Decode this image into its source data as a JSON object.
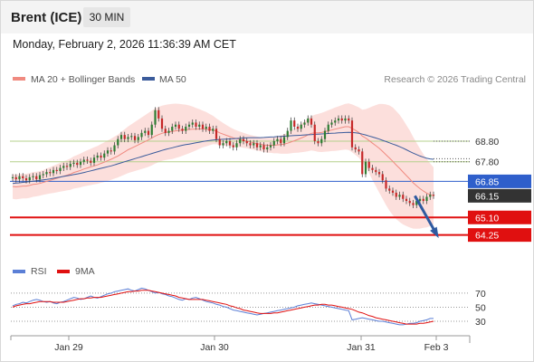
{
  "header": {
    "instrument": "Brent (ICE)",
    "timeframe": "30 MIN"
  },
  "timestamp": "Monday, February 2, 2026 11:36:39 AM CET",
  "copyright": "Research © 2026 Trading Central",
  "colors": {
    "bollinger_fill": "#fbd9d6",
    "ma20": "#f08a80",
    "ma50": "#3b5b9b",
    "bull": "#2e7d32",
    "bear": "#c62828",
    "resistance": "#b5d08c",
    "pivot": "#2f5fcb",
    "support": "#e01010",
    "arrow": "#2f5aa0",
    "last_price_tag": "#333333",
    "rsi": "#5b7fd6",
    "rsi_ma": "#e01010"
  },
  "chart_data": [
    {
      "type": "line",
      "name": "price",
      "legend": [
        "MA 20 + Bollinger Bands",
        "MA 50"
      ],
      "x_ticks": [
        "Jan 29",
        "Jan 30",
        "Jan 31",
        "Feb 3"
      ],
      "ylim": [
        63.4,
        71.3
      ],
      "grid": false,
      "legend_placement": "top-left",
      "levels": [
        {
          "value": 68.8,
          "label": "68.80",
          "role": "resistance"
        },
        {
          "value": 67.8,
          "label": "67.80",
          "role": "resistance"
        },
        {
          "value": 66.85,
          "label": "66.85",
          "role": "pivot"
        },
        {
          "value": 66.15,
          "label": "66.15",
          "role": "last"
        },
        {
          "value": 65.1,
          "label": "65.10",
          "role": "support"
        },
        {
          "value": 64.25,
          "label": "64.25",
          "role": "support"
        }
      ],
      "forecast_arrow": {
        "from": [
          118.5,
          66.15
        ],
        "to": [
          125,
          64.25
        ]
      },
      "ma_end_projection": 67.95,
      "close": [
        67.05,
        66.95,
        67.1,
        67.0,
        66.9,
        67.05,
        67.1,
        66.95,
        67.15,
        67.2,
        67.3,
        67.25,
        67.4,
        67.35,
        67.5,
        67.6,
        67.55,
        67.7,
        67.75,
        67.65,
        67.8,
        67.9,
        67.85,
        67.75,
        68.0,
        68.1,
        68.0,
        68.2,
        68.35,
        68.3,
        68.6,
        68.9,
        69.1,
        68.9,
        69.0,
        69.05,
        68.85,
        69.0,
        69.2,
        69.3,
        69.1,
        69.6,
        70.3,
        69.9,
        69.4,
        69.2,
        69.3,
        69.5,
        69.6,
        69.4,
        69.3,
        69.5,
        69.6,
        69.7,
        69.5,
        69.6,
        69.4,
        69.5,
        69.3,
        69.4,
        68.9,
        68.6,
        68.7,
        68.8,
        68.6,
        68.5,
        68.7,
        68.9,
        68.8,
        68.7,
        68.6,
        68.7,
        68.5,
        68.6,
        68.4,
        68.5,
        68.6,
        68.8,
        68.9,
        68.7,
        69.0,
        69.3,
        69.8,
        69.5,
        69.4,
        69.6,
        69.7,
        69.9,
        69.6,
        68.8,
        68.7,
        68.9,
        69.3,
        69.6,
        69.7,
        69.8,
        69.9,
        69.8,
        69.9,
        69.8,
        68.5,
        68.4,
        68.3,
        67.2,
        67.8,
        67.5,
        67.4,
        67.3,
        67.2,
        66.9,
        66.5,
        66.4,
        66.3,
        66.1,
        66.2,
        66.0,
        65.9,
        65.8,
        65.7,
        65.9,
        66.0,
        65.9,
        66.1,
        66.2,
        66.15
      ],
      "ma20": [
        66.6,
        66.58,
        66.6,
        66.62,
        66.62,
        66.65,
        66.7,
        66.72,
        66.75,
        66.8,
        66.85,
        66.9,
        66.95,
        67.0,
        67.05,
        67.1,
        67.15,
        67.2,
        67.28,
        67.33,
        67.38,
        67.45,
        67.5,
        67.55,
        67.6,
        67.65,
        67.72,
        67.78,
        67.85,
        67.92,
        68.0,
        68.08,
        68.18,
        68.28,
        68.38,
        68.46,
        68.54,
        68.62,
        68.7,
        68.78,
        68.86,
        68.95,
        69.05,
        69.12,
        69.18,
        69.22,
        69.25,
        69.27,
        69.3,
        69.32,
        69.34,
        69.36,
        69.37,
        69.38,
        69.38,
        69.39,
        69.39,
        69.38,
        69.36,
        69.34,
        69.28,
        69.2,
        69.14,
        69.08,
        69.02,
        68.96,
        68.92,
        68.88,
        68.84,
        68.8,
        68.76,
        68.72,
        68.68,
        68.65,
        68.62,
        68.6,
        68.6,
        68.6,
        68.62,
        68.63,
        68.66,
        68.7,
        68.76,
        68.82,
        68.88,
        68.95,
        69.02,
        69.1,
        69.18,
        69.2,
        69.2,
        69.22,
        69.26,
        69.3,
        69.34,
        69.38,
        69.42,
        69.46,
        69.5,
        69.5,
        69.42,
        69.32,
        69.22,
        69.05,
        68.95,
        68.83,
        68.7,
        68.58,
        68.45,
        68.3,
        68.14,
        67.98,
        67.82,
        67.64,
        67.48,
        67.3,
        67.13,
        66.96,
        66.78,
        66.63,
        66.5,
        66.38,
        66.28,
        66.2,
        66.15
      ],
      "bb_upper": [
        67.2,
        67.18,
        67.2,
        67.22,
        67.22,
        67.25,
        67.3,
        67.32,
        67.35,
        67.4,
        67.47,
        67.54,
        67.61,
        67.68,
        67.75,
        67.82,
        67.89,
        67.96,
        68.06,
        68.13,
        68.2,
        68.29,
        68.36,
        68.43,
        68.5,
        68.57,
        68.66,
        68.74,
        68.83,
        68.92,
        69.02,
        69.12,
        69.25,
        69.38,
        69.51,
        69.62,
        69.73,
        69.84,
        69.95,
        70.06,
        70.17,
        70.28,
        70.39,
        70.46,
        70.52,
        70.56,
        70.59,
        70.61,
        70.62,
        70.61,
        70.59,
        70.57,
        70.53,
        70.48,
        70.41,
        70.35,
        70.28,
        70.21,
        70.12,
        70.03,
        69.91,
        69.79,
        69.68,
        69.58,
        69.48,
        69.39,
        69.32,
        69.26,
        69.2,
        69.15,
        69.1,
        69.06,
        69.02,
        68.99,
        68.97,
        68.96,
        68.97,
        68.99,
        69.03,
        69.07,
        69.13,
        69.21,
        69.31,
        69.41,
        69.52,
        69.64,
        69.76,
        69.89,
        70.01,
        70.08,
        70.12,
        70.17,
        70.23,
        70.3,
        70.36,
        70.43,
        70.49,
        70.55,
        70.61,
        70.63,
        70.58,
        70.51,
        70.44,
        70.32,
        70.35,
        70.42,
        70.49,
        70.55,
        70.6,
        70.6,
        70.58,
        70.53,
        70.43,
        70.26,
        70.08,
        69.84,
        69.58,
        69.31,
        69.0,
        68.71,
        68.44,
        68.16,
        67.94,
        67.72,
        67.53
      ],
      "bb_lower": [
        66.0,
        65.98,
        66.0,
        66.02,
        66.02,
        66.05,
        66.1,
        66.12,
        66.15,
        66.2,
        66.23,
        66.26,
        66.29,
        66.32,
        66.35,
        66.38,
        66.41,
        66.44,
        66.5,
        66.53,
        66.56,
        66.61,
        66.64,
        66.67,
        66.7,
        66.73,
        66.78,
        66.82,
        66.87,
        66.92,
        66.98,
        67.04,
        67.11,
        67.18,
        67.25,
        67.3,
        67.35,
        67.4,
        67.45,
        67.5,
        67.55,
        67.62,
        67.71,
        67.78,
        67.84,
        67.88,
        67.91,
        67.93,
        67.98,
        68.03,
        68.09,
        68.15,
        68.21,
        68.28,
        68.35,
        68.43,
        68.5,
        68.55,
        68.6,
        68.65,
        68.65,
        68.61,
        68.6,
        68.58,
        68.56,
        68.53,
        68.52,
        68.5,
        68.48,
        68.45,
        68.42,
        68.38,
        68.34,
        68.31,
        68.27,
        68.24,
        68.23,
        68.21,
        68.21,
        68.19,
        68.19,
        68.19,
        68.21,
        68.23,
        68.24,
        68.26,
        68.28,
        68.31,
        68.35,
        68.32,
        68.28,
        68.27,
        68.29,
        68.3,
        68.32,
        68.33,
        68.35,
        68.37,
        68.39,
        68.37,
        68.26,
        68.13,
        68.0,
        67.78,
        67.55,
        67.24,
        66.91,
        66.61,
        66.3,
        66.0,
        65.7,
        65.43,
        65.21,
        65.02,
        64.88,
        64.76,
        64.68,
        64.61,
        64.56,
        64.55,
        64.56,
        64.6,
        64.62,
        64.68,
        64.77
      ],
      "ma50": [
        66.75,
        66.77,
        66.78,
        66.8,
        66.82,
        66.84,
        66.86,
        66.88,
        66.9,
        66.92,
        66.94,
        66.97,
        67.0,
        67.03,
        67.06,
        67.09,
        67.12,
        67.15,
        67.18,
        67.21,
        67.24,
        67.28,
        67.32,
        67.36,
        67.4,
        67.44,
        67.48,
        67.52,
        67.56,
        67.6,
        67.65,
        67.7,
        67.75,
        67.8,
        67.85,
        67.9,
        67.95,
        68.0,
        68.05,
        68.1,
        68.15,
        68.2,
        68.25,
        68.3,
        68.35,
        68.4,
        68.44,
        68.48,
        68.52,
        68.56,
        68.6,
        68.63,
        68.66,
        68.69,
        68.72,
        68.75,
        68.78,
        68.81,
        68.83,
        68.85,
        68.87,
        68.88,
        68.89,
        68.9,
        68.91,
        68.92,
        68.93,
        68.94,
        68.95,
        68.96,
        68.97,
        68.97,
        68.97,
        68.97,
        68.98,
        68.99,
        69.0,
        69.01,
        69.02,
        69.03,
        69.04,
        69.05,
        69.06,
        69.07,
        69.08,
        69.09,
        69.1,
        69.11,
        69.12,
        69.13,
        69.14,
        69.15,
        69.16,
        69.17,
        69.18,
        69.19,
        69.2,
        69.21,
        69.22,
        69.23,
        69.22,
        69.2,
        69.18,
        69.14,
        69.1,
        69.05,
        69.0,
        68.95,
        68.9,
        68.84,
        68.78,
        68.72,
        68.66,
        68.6,
        68.53,
        68.46,
        68.38,
        68.3,
        68.22,
        68.15,
        68.08,
        68.02,
        67.97,
        67.94,
        67.92
      ]
    },
    {
      "type": "line",
      "name": "rsi",
      "legend": [
        "RSI",
        "9MA"
      ],
      "ylim": [
        12,
        84
      ],
      "y_ticks": [
        30,
        50,
        70
      ],
      "grid": false,
      "legend_placement": "top-left",
      "rsi": [
        52,
        54,
        55,
        57,
        56,
        58,
        60,
        61,
        60,
        58,
        57,
        58,
        56,
        55,
        57,
        58,
        60,
        62,
        64,
        63,
        61,
        62,
        64,
        66,
        64,
        63,
        65,
        67,
        69,
        70,
        72,
        73,
        74,
        75,
        76,
        74,
        73,
        75,
        77,
        76,
        74,
        72,
        70,
        71,
        69,
        68,
        66,
        65,
        63,
        61,
        60,
        62,
        61,
        63,
        64,
        62,
        60,
        58,
        57,
        56,
        54,
        53,
        51,
        50,
        48,
        46,
        45,
        44,
        43,
        42,
        41,
        40,
        39,
        40,
        41,
        42,
        43,
        44,
        45,
        46,
        47,
        48,
        49,
        50,
        52,
        53,
        54,
        55,
        56,
        55,
        54,
        53,
        52,
        51,
        50,
        49,
        48,
        47,
        46,
        45,
        32,
        33,
        34,
        35,
        34,
        33,
        32,
        31,
        30,
        30,
        29,
        28,
        27,
        26,
        25,
        25,
        26,
        27,
        27,
        28,
        30,
        31,
        32,
        34,
        34
      ],
      "rsi_ma": [
        50,
        52,
        53,
        54,
        55,
        55,
        56,
        57,
        58,
        58,
        58,
        58,
        57,
        57,
        57,
        57,
        58,
        59,
        60,
        61,
        62,
        62,
        63,
        63,
        64,
        64,
        64,
        65,
        66,
        67,
        68,
        69,
        70,
        71,
        72,
        72,
        73,
        73,
        74,
        74,
        74,
        73,
        72,
        71,
        70,
        69,
        68,
        67,
        66,
        64,
        63,
        62,
        61,
        61,
        61,
        61,
        61,
        60,
        59,
        58,
        57,
        56,
        55,
        54,
        52,
        51,
        49,
        48,
        46,
        45,
        44,
        43,
        42,
        41,
        41,
        41,
        41,
        42,
        42,
        43,
        44,
        45,
        46,
        47,
        48,
        49,
        50,
        51,
        52,
        53,
        53,
        54,
        54,
        53,
        53,
        52,
        51,
        50,
        49,
        48,
        47,
        45,
        43,
        42,
        40,
        38,
        37,
        35,
        34,
        33,
        32,
        31,
        30,
        29,
        28,
        27,
        26,
        26,
        26,
        26,
        27,
        27,
        28,
        29,
        30
      ]
    }
  ]
}
